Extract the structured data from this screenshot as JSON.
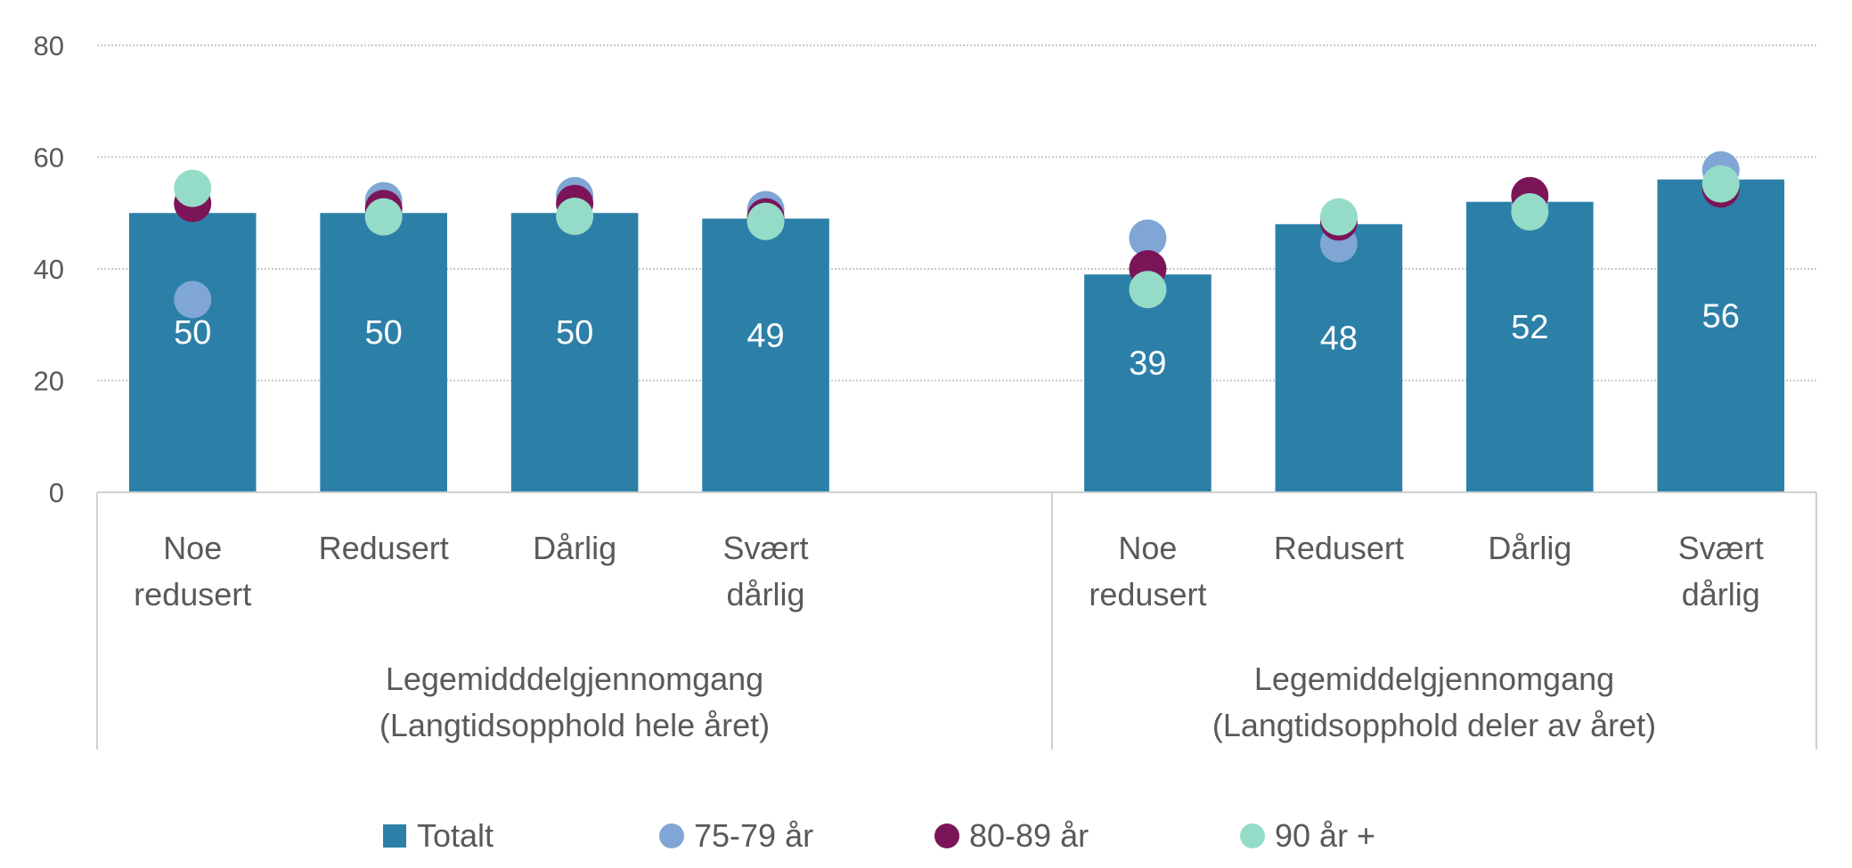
{
  "chart_data": {
    "type": "bar",
    "title": "",
    "xlabel": "",
    "ylabel": "",
    "ylim": [
      0,
      80
    ],
    "yticks": [
      0,
      20,
      40,
      60,
      80
    ],
    "grid": true,
    "legend_position": "bottom",
    "groups": [
      {
        "label_lines": [
          "Legemidddelgjennomgang",
          "(Langtidsopphold hele året)"
        ],
        "categories": [
          [
            "Noe",
            "redusert"
          ],
          [
            "Redusert"
          ],
          [
            "Dårlig"
          ],
          [
            "Svært",
            "dårlig"
          ]
        ]
      },
      {
        "label_lines": [
          "Legemiddelgjennomgang",
          "(Langtidsopphold deler av året)"
        ],
        "categories": [
          [
            "Noe",
            "redusert"
          ],
          [
            "Redusert"
          ],
          [
            "Dårlig"
          ],
          [
            "Svært",
            "dårlig"
          ]
        ]
      }
    ],
    "series": [
      {
        "name": "Totalt",
        "kind": "bar",
        "color": "#2C80A8",
        "values": [
          50,
          50,
          50,
          49,
          39,
          48,
          52,
          56
        ],
        "value_labels": [
          "50",
          "50",
          "50",
          "49",
          "39",
          "48",
          "52",
          "56"
        ]
      },
      {
        "name": "75-79 år",
        "kind": "dot",
        "color": "#7FA6D4",
        "values": [
          34.5,
          52.2,
          53.1,
          50.6,
          45.5,
          44.5,
          51.4,
          57.7
        ]
      },
      {
        "name": "80-89 år",
        "kind": "dot",
        "color": "#7B1558",
        "values": [
          51.7,
          50.8,
          51.7,
          49.3,
          40.0,
          48.4,
          53.1,
          54.3
        ]
      },
      {
        "name": "90 år +",
        "kind": "dot",
        "color": "#95DCC8",
        "values": [
          54.4,
          49.3,
          49.4,
          48.5,
          36.3,
          49.3,
          50.2,
          55.2
        ]
      }
    ]
  }
}
